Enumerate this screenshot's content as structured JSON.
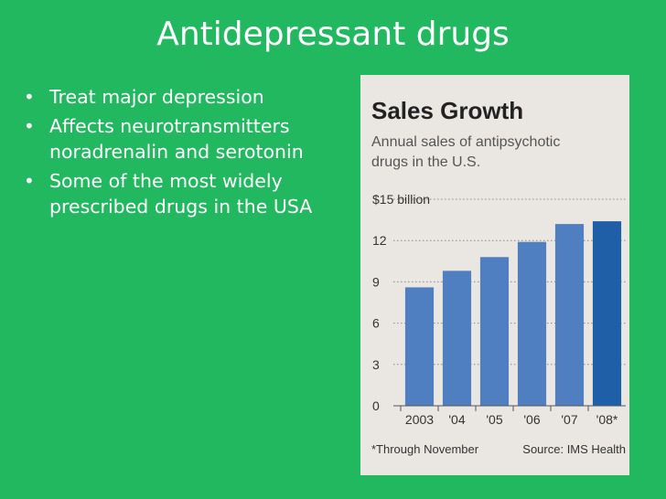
{
  "slide": {
    "title": "Antidepressant drugs",
    "bullets": [
      {
        "lines": [
          "Treat major depression"
        ]
      },
      {
        "lines": [
          "Affects neurotransmitters",
          "noradrenalin and serotonin"
        ]
      },
      {
        "lines": [
          "Some of the most widely",
          "prescribed drugs in the USA"
        ]
      }
    ]
  },
  "colors": {
    "background": "#21b85f",
    "figure_background": "#eae7e2",
    "bar": "#4f7ec1",
    "bar_highlight": "#1f5fa8",
    "text_dark": "#222222",
    "text_grey": "#555555"
  },
  "chart_data": {
    "type": "bar",
    "title": "Sales Growth",
    "subtitle_lines": [
      "Annual sales of antipsychotic",
      "drugs in the U.S."
    ],
    "categories": [
      "2003",
      "'04",
      "'05",
      "'06",
      "'07",
      "'08*"
    ],
    "values": [
      8.6,
      9.8,
      10.8,
      11.9,
      13.2,
      13.4
    ],
    "highlight_index": 5,
    "ylim": [
      0,
      15
    ],
    "yticks": [
      0,
      3,
      6,
      9,
      12,
      15
    ],
    "ytick_labels": [
      "0",
      "3",
      "6",
      "9",
      "12",
      "$15 billion"
    ],
    "grid": true,
    "footnote": "*Through November",
    "source": "Source: IMS Health"
  }
}
